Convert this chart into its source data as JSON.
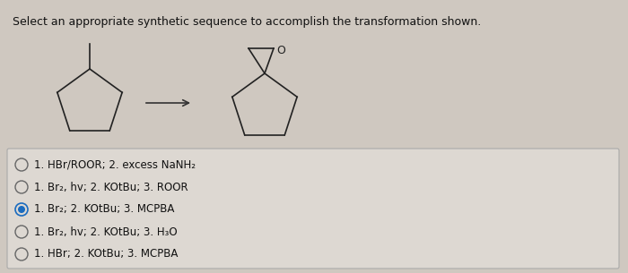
{
  "title": "Select an appropriate synthetic sequence to accomplish the transformation shown.",
  "title_fontsize": 9.0,
  "bg_color": "#cfc8c0",
  "box_bg_color": "#ddd8d2",
  "options": [
    {
      "selected": false
    },
    {
      "selected": false
    },
    {
      "selected": true
    },
    {
      "selected": false
    },
    {
      "selected": false
    }
  ],
  "option_texts": [
    "1. HBr/ROOR; 2. excess NaNH₂",
    "1. Br₂, hv; 2. KOtBu; 3. ROOR",
    "1. Br₂; 2. KOtBu; 3. MCPBA",
    "1. Br₂, hv; 2. KOtBu; 3. H₃O",
    "1. HBr; 2. KOtBu; 3. MCPBA"
  ],
  "radio_color_selected": "#1a6bbf",
  "radio_color_unselected": "#666666",
  "option_fontsize": 8.5,
  "arrow_color": "#333333",
  "mol_color": "#222222",
  "mol_lw": 1.2
}
